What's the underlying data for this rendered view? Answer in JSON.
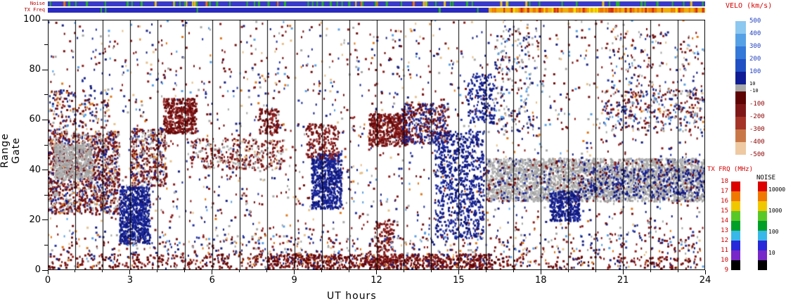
{
  "chart_data": {
    "type": "heatmap",
    "title": "",
    "xlabel": "UT hours",
    "ylabel": "Range Gate",
    "xlim": [
      0,
      24
    ],
    "ylim": [
      0,
      100
    ],
    "x_ticks": [
      "0",
      "3",
      "6",
      "9",
      "12",
      "15",
      "18",
      "21",
      "24"
    ],
    "y_ticks": [
      "0",
      "20",
      "40",
      "60",
      "80",
      "100"
    ],
    "x_minor_step": 1,
    "y_minor_step": 10,
    "hour_gridlines": true,
    "seed": 1337,
    "background": {
      "n": 2300,
      "palette": "speck"
    },
    "palettes": {
      "speck": [
        [
          "#701010",
          3
        ],
        [
          "#16207E",
          2.4
        ],
        [
          "#A8A8A8",
          1.8
        ],
        [
          "#58A0E6",
          1
        ],
        [
          "#E6C08A",
          1
        ],
        [
          "#E07818",
          0.8
        ],
        [
          "#8B1A1A",
          2
        ],
        [
          "#2333A0",
          1.5
        ]
      ],
      "gray": [
        [
          "#ACACAC",
          3
        ],
        [
          "#B8B8B8",
          2
        ],
        [
          "#9E9E9E",
          2
        ]
      ],
      "red": [
        [
          "#660808",
          4
        ],
        [
          "#7E1414",
          3
        ],
        [
          "#8F2020",
          2
        ],
        [
          "#A23030",
          1
        ]
      ],
      "blue": [
        [
          "#101C86",
          4
        ],
        [
          "#19249C",
          3
        ],
        [
          "#0C1270",
          2
        ],
        [
          "#2A3AAE",
          1
        ]
      ],
      "mix_rg": [
        [
          "#6E0C0C",
          3.5
        ],
        [
          "#8B1A1A",
          2
        ],
        [
          "#ACACAC",
          2.4
        ],
        [
          "#141E8C",
          1.6
        ],
        [
          "#E6C08A",
          0.5
        ],
        [
          "#E07818",
          0.4
        ]
      ],
      "mix_rb": [
        [
          "#6E0C0C",
          3
        ],
        [
          "#8B1A1A",
          1.5
        ],
        [
          "#141E8C",
          3
        ],
        [
          "#2A3AAE",
          1
        ],
        [
          "#ACACAC",
          0.8
        ]
      ],
      "mix_rgray": [
        [
          "#751010",
          3
        ],
        [
          "#ACACAC",
          2.5
        ],
        [
          "#E6C08A",
          0.7
        ],
        [
          "#8B1A1A",
          1.5
        ]
      ],
      "red_bottom": [
        [
          "#5E0404",
          4
        ],
        [
          "#7E1010",
          3
        ],
        [
          "#98201A",
          1.5
        ],
        [
          "#16207E",
          0.8
        ],
        [
          "#E07818",
          0.4
        ]
      ],
      "blue_gray": [
        [
          "#101C86",
          3
        ],
        [
          "#ACACAC",
          2
        ],
        [
          "#19249C",
          1.5
        ]
      ],
      "speck_bg": [
        [
          "#ACACAC",
          2.5
        ],
        [
          "#16207E",
          2
        ],
        [
          "#58A0E6",
          1
        ],
        [
          "#701010",
          1
        ]
      ]
    },
    "clusters": [
      {
        "x": [
          0,
          2.6
        ],
        "y": [
          22,
          55
        ],
        "n": 1400,
        "p": "mix_rg"
      },
      {
        "x": [
          0.2,
          1.6
        ],
        "y": [
          36,
          50
        ],
        "n": 450,
        "p": "gray"
      },
      {
        "x": [
          0,
          2.2
        ],
        "y": [
          55,
          72
        ],
        "n": 160,
        "p": "speck"
      },
      {
        "x": [
          2.6,
          3.7
        ],
        "y": [
          10,
          33
        ],
        "n": 700,
        "p": "blue"
      },
      {
        "x": [
          3.0,
          4.3
        ],
        "y": [
          33,
          56
        ],
        "n": 430,
        "p": "mix_rg"
      },
      {
        "x": [
          4.2,
          5.4
        ],
        "y": [
          54,
          68
        ],
        "n": 420,
        "p": "red"
      },
      {
        "x": [
          5.2,
          8.6
        ],
        "y": [
          40,
          52
        ],
        "n": 330,
        "p": "mix_rgray"
      },
      {
        "x": [
          7.7,
          8.4
        ],
        "y": [
          54,
          64
        ],
        "n": 110,
        "p": "red"
      },
      {
        "x": [
          9.6,
          10.7
        ],
        "y": [
          24,
          46
        ],
        "n": 620,
        "p": "blue"
      },
      {
        "x": [
          9.4,
          10.6
        ],
        "y": [
          44,
          58
        ],
        "n": 180,
        "p": "red"
      },
      {
        "x": [
          11.7,
          13.1
        ],
        "y": [
          49,
          62
        ],
        "n": 430,
        "p": "red"
      },
      {
        "x": [
          12.9,
          14.6
        ],
        "y": [
          50,
          66
        ],
        "n": 430,
        "p": "mix_rb"
      },
      {
        "x": [
          14.1,
          15.9
        ],
        "y": [
          12,
          55
        ],
        "n": 750,
        "p": "blue"
      },
      {
        "x": [
          15.3,
          16.3
        ],
        "y": [
          58,
          78
        ],
        "n": 170,
        "p": "blue"
      },
      {
        "x": [
          16,
          24
        ],
        "y": [
          27,
          44
        ],
        "n": 2800,
        "p": "gray"
      },
      {
        "x": [
          16,
          24
        ],
        "y": [
          27,
          44
        ],
        "n": 420,
        "p": "mix_rb"
      },
      {
        "x": [
          18.3,
          19.4
        ],
        "y": [
          19,
          31
        ],
        "n": 320,
        "p": "blue"
      },
      {
        "x": [
          19.5,
          24
        ],
        "y": [
          29,
          40
        ],
        "n": 400,
        "p": "blue_gray"
      },
      {
        "x": [
          8,
          16.2
        ],
        "y": [
          0,
          6
        ],
        "n": 850,
        "p": "red_bottom"
      },
      {
        "x": [
          0,
          8
        ],
        "y": [
          0,
          6
        ],
        "n": 260,
        "p": "red_bottom"
      },
      {
        "x": [
          16.2,
          24
        ],
        "y": [
          0,
          5
        ],
        "n": 170,
        "p": "red_bottom"
      },
      {
        "x": [
          11.9,
          12.6
        ],
        "y": [
          0,
          20
        ],
        "n": 140,
        "p": "red"
      },
      {
        "x": [
          20,
          24
        ],
        "y": [
          55,
          72
        ],
        "n": 230,
        "p": "speck"
      },
      {
        "x": [
          16.3,
          17.7
        ],
        "y": [
          55,
          96
        ],
        "n": 170,
        "p": "speck_bg"
      },
      {
        "x": [
          20.5,
          24
        ],
        "y": [
          60,
          96
        ],
        "n": 220,
        "p": "speck"
      },
      {
        "x": [
          0,
          24
        ],
        "y": [
          6,
          14
        ],
        "n": 350,
        "p": "speck"
      }
    ],
    "strips": {
      "noise": {
        "label": "Noise",
        "segments": [
          {
            "x": [
              0,
              24
            ],
            "color": "#3A3AC8"
          }
        ],
        "ticks": [
          {
            "color": "#28B428",
            "n": 55
          },
          {
            "color": "#E8C020",
            "n": 14
          },
          {
            "color": "#F07800",
            "n": 6
          }
        ]
      },
      "txfreq": {
        "label": "TX Freq",
        "segments": [
          {
            "x": [
              0,
              16.1
            ],
            "color": "#2A2ABE"
          },
          {
            "x": [
              16.1,
              24
            ],
            "color": "#EDAE10"
          }
        ],
        "ticks": [
          {
            "color": "#F07800",
            "n": 60,
            "x": [
              16.1,
              24
            ]
          },
          {
            "color": "#D43010",
            "n": 22,
            "x": [
              16.1,
              24
            ]
          },
          {
            "color": "#F5E400",
            "n": 10,
            "x": [
              16.1,
              24
            ]
          },
          {
            "color": "#30B430",
            "n": 5,
            "x": [
              0,
              16.1
            ]
          }
        ]
      }
    },
    "colorbars": {
      "velocity": {
        "title": "VELO (km/s)",
        "labels": [
          "500",
          "400",
          "300",
          "200",
          "100",
          "10",
          "-10",
          "-100",
          "-200",
          "-300",
          "-400",
          "-500"
        ],
        "pos_colors": [
          "#8CC8F0",
          "#56A0E6",
          "#3478D8",
          "#2050C4",
          "#101C94"
        ],
        "mid_color": "#A8A8A8",
        "neg_colors": [
          "#5E0404",
          "#7E1818",
          "#A43428",
          "#C87848",
          "#EEC9A2"
        ]
      },
      "txfrq": {
        "title": "TX FRQ (MHz)",
        "labels": [
          "18",
          "17",
          "16",
          "15",
          "14",
          "13",
          "12",
          "11",
          "10",
          "9"
        ],
        "colors": [
          "#DC0000",
          "#F07800",
          "#F0C800",
          "#58C828",
          "#00A028",
          "#38B8E8",
          "#2828D8",
          "#7828C8",
          "#000000"
        ]
      },
      "noise": {
        "title": "NOISE",
        "labels": [
          "10000",
          "1000",
          "100",
          "10"
        ],
        "colors": [
          "#DC0000",
          "#F07800",
          "#F0C800",
          "#58C828",
          "#00A028",
          "#38B8E8",
          "#2828D8",
          "#7828C8",
          "#000000"
        ]
      }
    }
  }
}
